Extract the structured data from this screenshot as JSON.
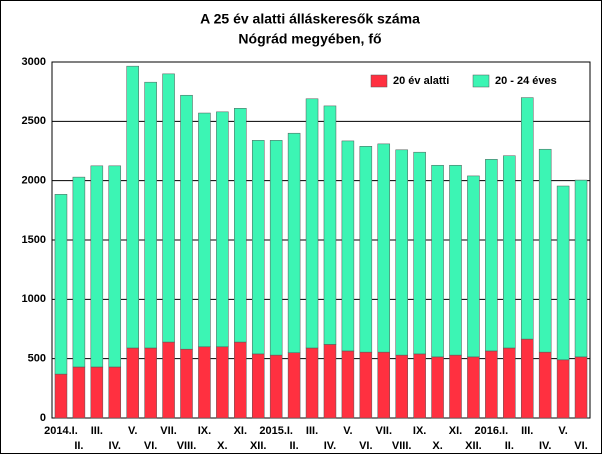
{
  "chart_data": {
    "type": "stacked_bar",
    "title": [
      "A 25 év alatti álláskeresők száma",
      "Nógrád megyében, fő"
    ],
    "categories": [
      "2014.I.",
      "II.",
      "III.",
      "IV.",
      "V.",
      "VI.",
      "VII.",
      "VIII.",
      "IX.",
      "X.",
      "XI.",
      "XII.",
      "2015.I.",
      "II.",
      "III.",
      "IV.",
      "V.",
      "VI.",
      "VII.",
      "VIII.",
      "IX.",
      "X.",
      "XI.",
      "XII.",
      "2016.I.",
      "II.",
      "III.",
      "IV.",
      "V.",
      "VI."
    ],
    "series": [
      {
        "name": "20 év alatti",
        "color": "#ff3040",
        "values": [
          370,
          430,
          430,
          430,
          590,
          590,
          640,
          580,
          600,
          600,
          640,
          540,
          530,
          550,
          590,
          620,
          565,
          555,
          555,
          530,
          540,
          515,
          530,
          515,
          565,
          590,
          665,
          555,
          490,
          515
        ]
      },
      {
        "name": "20 - 24 éves",
        "color": "#3cf5b4",
        "values": [
          1515,
          1600,
          1695,
          1695,
          2375,
          2240,
          2260,
          2140,
          1970,
          1980,
          1970,
          1800,
          1810,
          1850,
          2100,
          2010,
          1770,
          1735,
          1755,
          1730,
          1700,
          1615,
          1600,
          1525,
          1615,
          1620,
          2035,
          1710,
          1465,
          1490
        ]
      }
    ],
    "ylim": [
      0,
      3000
    ],
    "yticks": [
      0,
      500,
      1000,
      1500,
      2000,
      2500,
      3000
    ],
    "grid": true,
    "legend": "top-right"
  }
}
